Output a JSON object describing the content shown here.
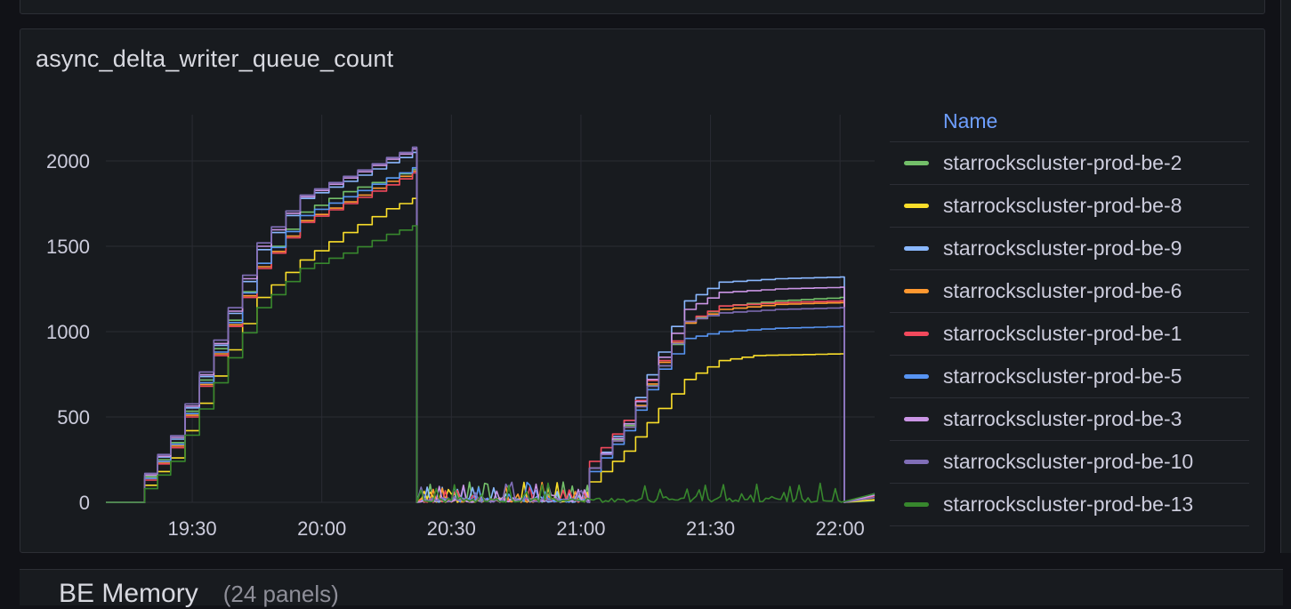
{
  "panel": {
    "title": "async_delta_writer_queue_count"
  },
  "next_panel": {
    "title": "BE Memory",
    "subtitle": "(24 panels)"
  },
  "colors": {
    "background": "#111217",
    "panel": "#181b1f",
    "grid": "#2c2e35",
    "legend_header": "#6e9fff"
  },
  "chart_data": {
    "type": "line",
    "title": "async_delta_writer_queue_count",
    "xlabel": "",
    "ylabel": "",
    "x_ticks": [
      "19:30",
      "20:00",
      "20:30",
      "21:00",
      "21:30",
      "22:00"
    ],
    "y_ticks": [
      "0",
      "500",
      "1000",
      "1500",
      "2000"
    ],
    "xlim": [
      "19:10",
      "22:08"
    ],
    "ylim": [
      0,
      2250
    ],
    "grid": true,
    "legend_placement": "right",
    "legend_header": "Name",
    "series": [
      {
        "name": "starrockscluster-prod-be-2",
        "color": "#73bf69",
        "phase1": {
          "rise": "19:19",
          "start": 150,
          "points": [
            [
              "19:25",
              350
            ],
            [
              "19:35",
              900
            ],
            [
              "19:45",
              1400
            ],
            [
              "19:55",
              1700
            ],
            [
              "20:05",
              1820
            ],
            [
              "20:15",
              1900
            ],
            [
              "20:21",
              1950
            ]
          ]
        },
        "phase2": {
          "rise": "21:02",
          "start": 200,
          "points": [
            [
              "21:10",
              450
            ],
            [
              "21:18",
              800
            ],
            [
              "21:24",
              1050
            ],
            [
              "21:32",
              1150
            ],
            [
              "21:45",
              1180
            ],
            [
              "22:00",
              1200
            ]
          ]
        }
      },
      {
        "name": "starrockscluster-prod-be-8",
        "color": "#fade2a",
        "phase1": {
          "rise": "19:19",
          "start": 100,
          "points": [
            [
              "19:25",
              260
            ],
            [
              "19:35",
              740
            ],
            [
              "19:45",
              1200
            ],
            [
              "19:55",
              1420
            ],
            [
              "20:05",
              1580
            ],
            [
              "20:15",
              1720
            ],
            [
              "20:21",
              1780
            ]
          ]
        },
        "phase2": {
          "rise": "21:02",
          "start": 120,
          "points": [
            [
              "21:10",
              300
            ],
            [
              "21:18",
              550
            ],
            [
              "21:24",
              720
            ],
            [
              "21:32",
              830
            ],
            [
              "21:40",
              860
            ],
            [
              "22:00",
              870
            ]
          ]
        }
      },
      {
        "name": "starrockscluster-prod-be-9",
        "color": "#8ab8ff",
        "phase1": {
          "rise": "19:19",
          "start": 160,
          "points": [
            [
              "19:25",
              370
            ],
            [
              "19:35",
              920
            ],
            [
              "19:45",
              1480
            ],
            [
              "19:55",
              1780
            ],
            [
              "20:05",
              1880
            ],
            [
              "20:15",
              1990
            ],
            [
              "20:21",
              2050
            ]
          ]
        },
        "phase2": {
          "rise": "21:02",
          "start": 200,
          "points": [
            [
              "21:10",
              480
            ],
            [
              "21:18",
              880
            ],
            [
              "21:24",
              1180
            ],
            [
              "21:32",
              1290
            ],
            [
              "21:45",
              1310
            ],
            [
              "22:00",
              1320
            ]
          ]
        }
      },
      {
        "name": "starrockscluster-prod-be-6",
        "color": "#ff9830",
        "phase1": {
          "rise": "19:19",
          "start": 140,
          "points": [
            [
              "19:25",
              330
            ],
            [
              "19:35",
              870
            ],
            [
              "19:45",
              1380
            ],
            [
              "19:55",
              1650
            ],
            [
              "20:05",
              1760
            ],
            [
              "20:15",
              1880
            ],
            [
              "20:21",
              1940
            ]
          ]
        },
        "phase2": {
          "rise": "21:02",
          "start": 200,
          "points": [
            [
              "21:10",
              440
            ],
            [
              "21:18",
              820
            ],
            [
              "21:24",
              1050
            ],
            [
              "21:32",
              1130
            ],
            [
              "21:45",
              1160
            ],
            [
              "22:00",
              1170
            ]
          ]
        }
      },
      {
        "name": "starrockscluster-prod-be-1",
        "color": "#f2495c",
        "phase1": {
          "rise": "19:19",
          "start": 130,
          "points": [
            [
              "19:25",
              320
            ],
            [
              "19:35",
              860
            ],
            [
              "19:45",
              1370
            ],
            [
              "19:55",
              1640
            ],
            [
              "20:05",
              1750
            ],
            [
              "20:15",
              1860
            ],
            [
              "20:21",
              1930
            ]
          ]
        },
        "phase2": {
          "rise": "21:02",
          "start": 240,
          "points": [
            [
              "21:10",
              480
            ],
            [
              "21:18",
              830
            ],
            [
              "21:24",
              1060
            ],
            [
              "21:32",
              1150
            ],
            [
              "21:45",
              1170
            ],
            [
              "22:00",
              1180
            ]
          ]
        }
      },
      {
        "name": "starrockscluster-prod-be-5",
        "color": "#5794f2",
        "phase1": {
          "rise": "19:19",
          "start": 140,
          "points": [
            [
              "19:25",
              340
            ],
            [
              "19:35",
              880
            ],
            [
              "19:45",
              1400
            ],
            [
              "19:55",
              1680
            ],
            [
              "20:05",
              1790
            ],
            [
              "20:15",
              1900
            ],
            [
              "20:21",
              1960
            ]
          ]
        },
        "phase2": {
          "rise": "21:02",
          "start": 180,
          "points": [
            [
              "21:10",
              420
            ],
            [
              "21:18",
              780
            ],
            [
              "21:24",
              960
            ],
            [
              "21:32",
              1000
            ],
            [
              "21:45",
              1020
            ],
            [
              "22:00",
              1030
            ]
          ]
        }
      },
      {
        "name": "starrockscluster-prod-be-3",
        "color": "#ca95e5",
        "phase1": {
          "rise": "19:19",
          "start": 160,
          "points": [
            [
              "19:25",
              380
            ],
            [
              "19:35",
              930
            ],
            [
              "19:45",
              1500
            ],
            [
              "19:55",
              1790
            ],
            [
              "20:05",
              1900
            ],
            [
              "20:15",
              2010
            ],
            [
              "20:21",
              2070
            ]
          ]
        },
        "phase2": {
          "rise": "21:02",
          "start": 200,
          "points": [
            [
              "21:10",
              460
            ],
            [
              "21:18",
              850
            ],
            [
              "21:24",
              1130
            ],
            [
              "21:32",
              1230
            ],
            [
              "21:45",
              1250
            ],
            [
              "22:00",
              1260
            ]
          ]
        }
      },
      {
        "name": "starrockscluster-prod-be-10",
        "color": "#806eb7",
        "phase1": {
          "rise": "19:19",
          "start": 170,
          "points": [
            [
              "19:25",
              390
            ],
            [
              "19:35",
              950
            ],
            [
              "19:45",
              1520
            ],
            [
              "19:55",
              1800
            ],
            [
              "20:05",
              1910
            ],
            [
              "20:15",
              2020
            ],
            [
              "20:21",
              2080
            ]
          ]
        },
        "phase2": {
          "rise": "21:02",
          "start": 200,
          "points": [
            [
              "21:10",
              440
            ],
            [
              "21:18",
              800
            ],
            [
              "21:24",
              1060
            ],
            [
              "21:32",
              1110
            ],
            [
              "21:45",
              1130
            ],
            [
              "22:00",
              1140
            ]
          ]
        }
      },
      {
        "name": "starrockscluster-prod-be-13",
        "color": "#37872d",
        "phase1": {
          "rise": "19:19",
          "start": 80,
          "points": [
            [
              "19:25",
              240
            ],
            [
              "19:35",
              700
            ],
            [
              "19:45",
              1140
            ],
            [
              "19:55",
              1370
            ],
            [
              "20:05",
              1460
            ],
            [
              "20:15",
              1570
            ],
            [
              "20:21",
              1620
            ]
          ]
        },
        "phase2": null
      }
    ]
  }
}
